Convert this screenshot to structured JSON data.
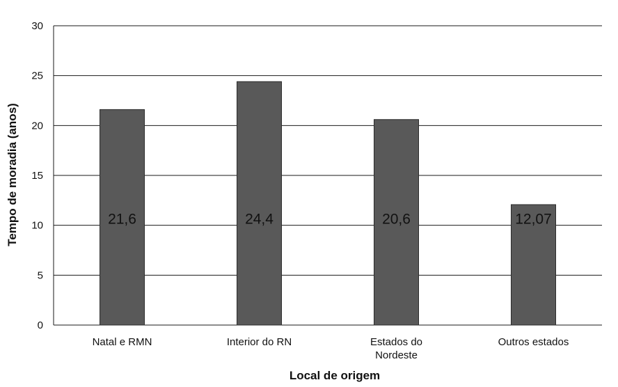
{
  "chart_data": {
    "type": "bar",
    "title": "",
    "xlabel": "Local de origem",
    "ylabel": "Tempo de moradia (anos)",
    "categories": [
      "Natal e RMN",
      "Interior do RN",
      "Estados do Nordeste",
      "Outros estados"
    ],
    "category_lines": [
      [
        "Natal e RMN"
      ],
      [
        "Interior do RN"
      ],
      [
        "Estados do",
        "Nordeste"
      ],
      [
        "Outros estados"
      ]
    ],
    "values": [
      21.6,
      24.4,
      20.6,
      12.07
    ],
    "data_labels": [
      "21,6",
      "24,4",
      "20,6",
      "12,07"
    ],
    "ylim": [
      0,
      30
    ],
    "yticks": [
      0,
      5,
      10,
      15,
      20,
      25,
      30
    ],
    "grid": true,
    "legend": "none",
    "colors": {
      "bar": "#595959",
      "bar_edge": "#2b2b2b",
      "grid": "#1a1a1a"
    }
  }
}
